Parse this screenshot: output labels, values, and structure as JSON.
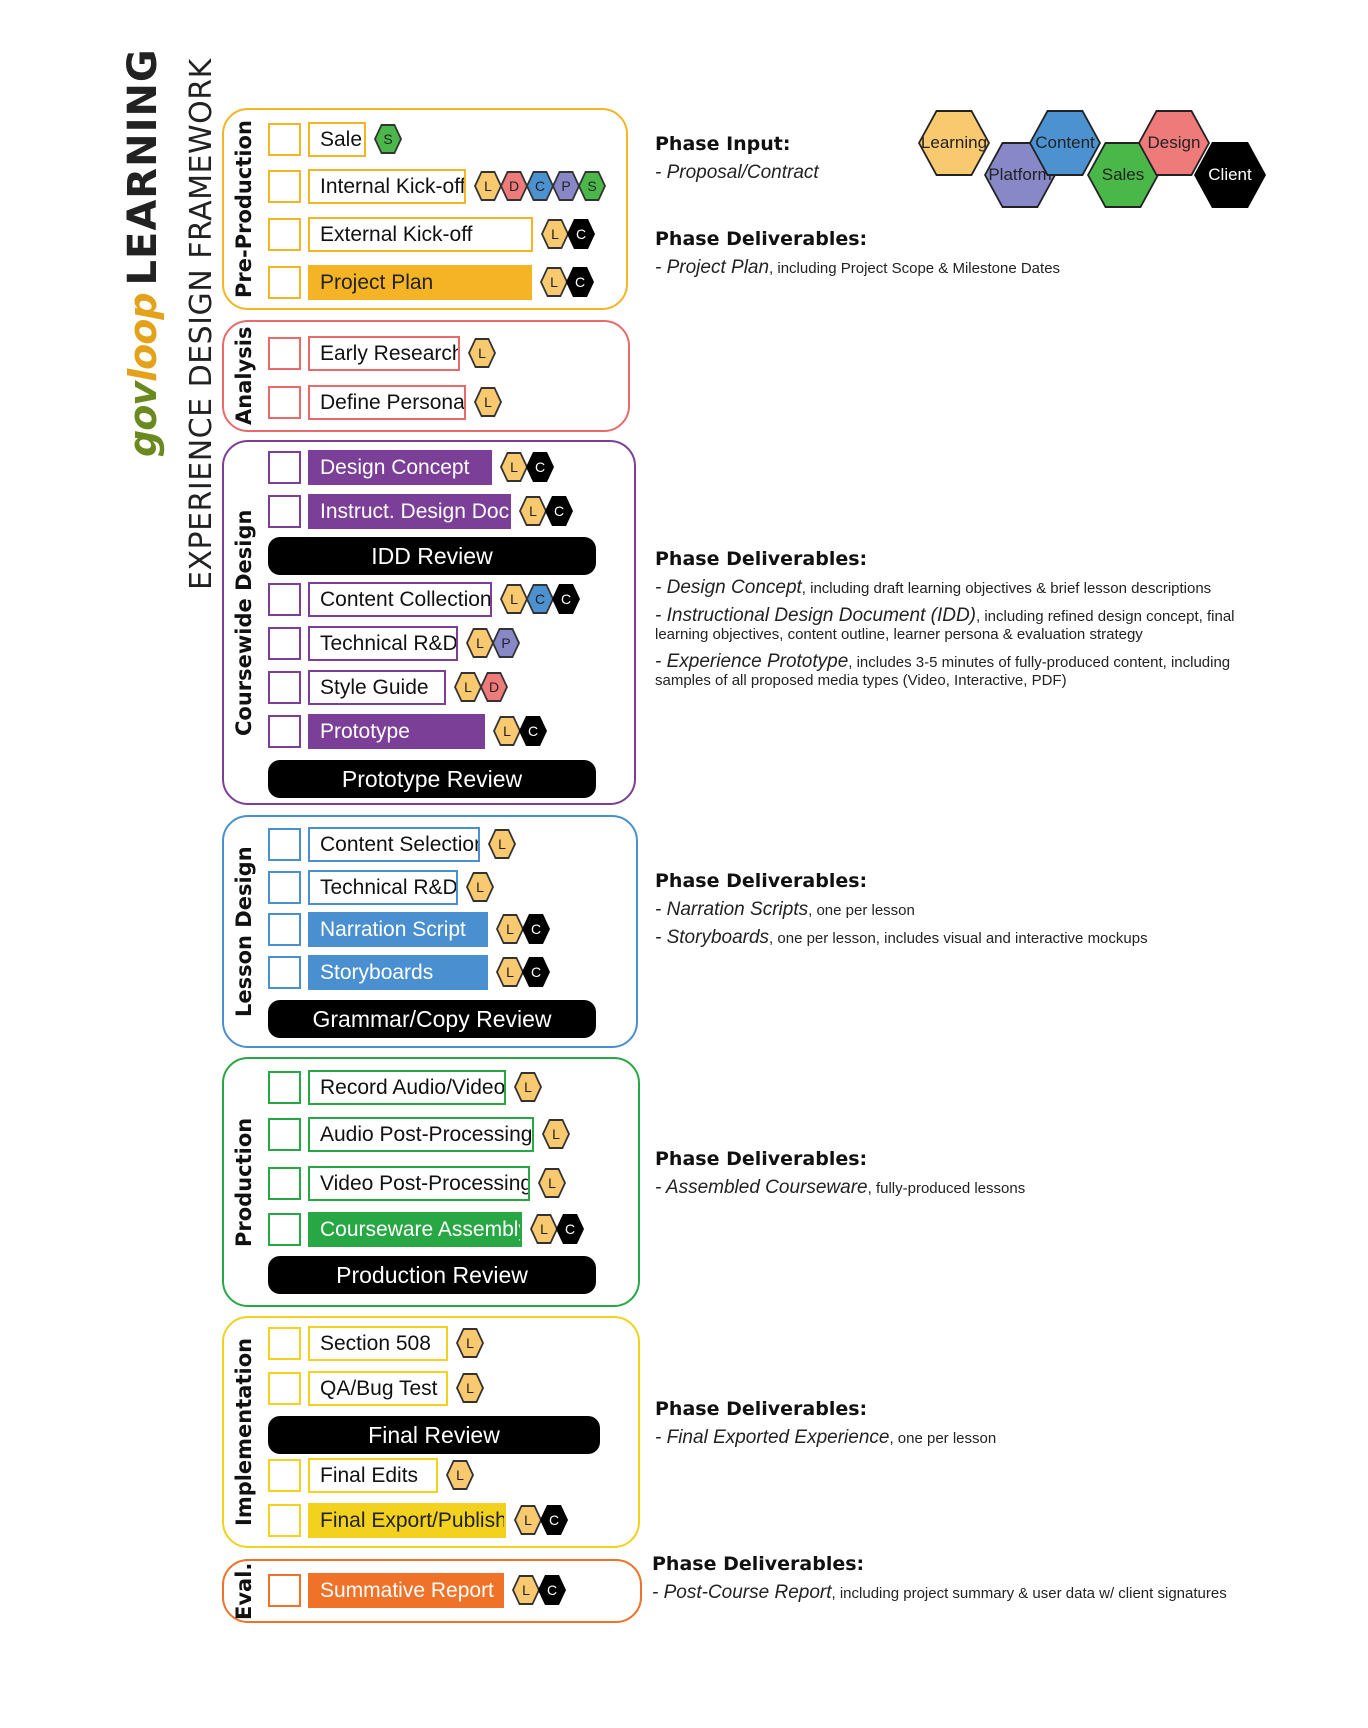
{
  "brand": {
    "gov": "gov",
    "loop": "loop",
    "learning": "LEARNING",
    "subtitle": "EXPERIENCE DESIGN FRAMEWORK"
  },
  "colors": {
    "learning": "#f9c970",
    "design": "#ef7a7a",
    "content": "#4c92d1",
    "platform": "#8888c8",
    "sales": "#4ab849",
    "client": "#000000",
    "preproduction": "#f4b426",
    "analysis": "#e86a6a",
    "coursewide": "#7b3f98",
    "lesson": "#4a90d0",
    "production": "#27a844",
    "implementation": "#f2d21f",
    "eval": "#f07128"
  },
  "legend": [
    {
      "key": "learning",
      "label": "Learning"
    },
    {
      "key": "platform",
      "label": "Platform"
    },
    {
      "key": "content",
      "label": "Content"
    },
    {
      "key": "sales",
      "label": "Sales"
    },
    {
      "key": "design",
      "label": "Design"
    },
    {
      "key": "client",
      "label": "Client"
    }
  ],
  "phases": [
    {
      "id": "preproduction",
      "label": "Pre-Production",
      "tasks": [
        {
          "label": "Sale",
          "filled": false,
          "roles": [
            "S"
          ]
        },
        {
          "label": "Internal Kick-off",
          "filled": false,
          "roles": [
            "L",
            "D",
            "C",
            "P",
            "S"
          ]
        },
        {
          "label": "External Kick-off",
          "filled": false,
          "roles": [
            "L",
            "C"
          ]
        },
        {
          "label": "Project Plan",
          "filled": true,
          "roles": [
            "L",
            "C"
          ]
        }
      ]
    },
    {
      "id": "analysis",
      "label": "Analysis",
      "tasks": [
        {
          "label": "Early Research",
          "filled": false,
          "roles": [
            "L"
          ]
        },
        {
          "label": "Define Persona",
          "filled": false,
          "roles": [
            "L"
          ]
        }
      ]
    },
    {
      "id": "coursewide",
      "label": "Coursewide Design",
      "tasks": [
        {
          "label": "Design Concept",
          "filled": true,
          "roles": [
            "L",
            "C"
          ]
        },
        {
          "label": "Instruct. Design Doc.",
          "filled": true,
          "roles": [
            "L",
            "C"
          ]
        },
        {
          "review": "IDD Review"
        },
        {
          "label": "Content Collection",
          "filled": false,
          "roles": [
            "L",
            "C",
            "C"
          ]
        },
        {
          "label": "Technical R&D",
          "filled": false,
          "roles": [
            "L",
            "P"
          ]
        },
        {
          "label": "Style Guide",
          "filled": false,
          "roles": [
            "L",
            "D"
          ]
        },
        {
          "label": "Prototype",
          "filled": true,
          "roles": [
            "L",
            "C"
          ]
        },
        {
          "review": "Prototype Review"
        }
      ]
    },
    {
      "id": "lesson",
      "label": "Lesson Design",
      "tasks": [
        {
          "label": "Content Selection",
          "filled": false,
          "roles": [
            "L"
          ]
        },
        {
          "label": "Technical R&D",
          "filled": false,
          "roles": [
            "L"
          ]
        },
        {
          "label": "Narration Script",
          "filled": true,
          "roles": [
            "L",
            "C"
          ]
        },
        {
          "label": "Storyboards",
          "filled": true,
          "roles": [
            "L",
            "C"
          ]
        },
        {
          "review": "Grammar/Copy Review"
        }
      ]
    },
    {
      "id": "production",
      "label": "Production",
      "tasks": [
        {
          "label": "Record Audio/Video",
          "filled": false,
          "roles": [
            "L"
          ]
        },
        {
          "label": "Audio Post-Processing",
          "filled": false,
          "roles": [
            "L"
          ]
        },
        {
          "label": "Video Post-Processing",
          "filled": false,
          "roles": [
            "L"
          ]
        },
        {
          "label": "Courseware Assembly",
          "filled": true,
          "roles": [
            "L",
            "C"
          ]
        },
        {
          "review": "Production Review"
        }
      ]
    },
    {
      "id": "implementation",
      "label": "Implementation",
      "tasks": [
        {
          "label": "Section 508",
          "filled": false,
          "roles": [
            "L"
          ]
        },
        {
          "label": "QA/Bug Test",
          "filled": false,
          "roles": [
            "L"
          ]
        },
        {
          "review": "Final Review"
        },
        {
          "label": "Final Edits",
          "filled": false,
          "roles": [
            "L"
          ]
        },
        {
          "label": "Final Export/Publish",
          "filled": true,
          "roles": [
            "L",
            "C"
          ]
        }
      ]
    },
    {
      "id": "eval",
      "label": "Eval.",
      "tasks": [
        {
          "label": "Summative Report",
          "filled": true,
          "roles": [
            "L",
            "C"
          ]
        }
      ]
    }
  ],
  "info": [
    {
      "heading": "Phase Input:",
      "items": [
        {
          "em": "- Proposal/Contract",
          "rest": ""
        }
      ]
    },
    {
      "heading": "Phase Deliverables:",
      "items": [
        {
          "em": "- Project Plan",
          "rest": ", including Project Scope & Milestone Dates"
        }
      ]
    },
    {
      "heading": "Phase Deliverables:",
      "items": [
        {
          "em": "- Design Concept",
          "rest": ", including draft learning objectives & brief lesson descriptions"
        },
        {
          "em": "- Instructional Design Document (IDD)",
          "rest": ", including refined design concept, final learning objectives, content outline, learner persona & evaluation strategy"
        },
        {
          "em": "- Experience Prototype",
          "rest": ", includes 3-5 minutes of fully-produced content, including samples of all proposed media types (Video, Interactive, PDF)"
        }
      ]
    },
    {
      "heading": "Phase Deliverables:",
      "items": [
        {
          "em": "- Narration Scripts",
          "rest": ", one per lesson"
        },
        {
          "em": "- Storyboards",
          "rest": ", one per lesson, includes visual and interactive mockups"
        }
      ]
    },
    {
      "heading": "Phase Deliverables:",
      "items": [
        {
          "em": "- Assembled Courseware",
          "rest": ", fully-produced lessons"
        }
      ]
    },
    {
      "heading": "Phase Deliverables:",
      "items": [
        {
          "em": "- Final Exported Experience",
          "rest": ", one per lesson"
        }
      ]
    },
    {
      "heading": "Phase Deliverables:",
      "items": [
        {
          "em": "- Post-Course Report",
          "rest": ", including project summary & user data w/ client signatures"
        }
      ]
    }
  ]
}
